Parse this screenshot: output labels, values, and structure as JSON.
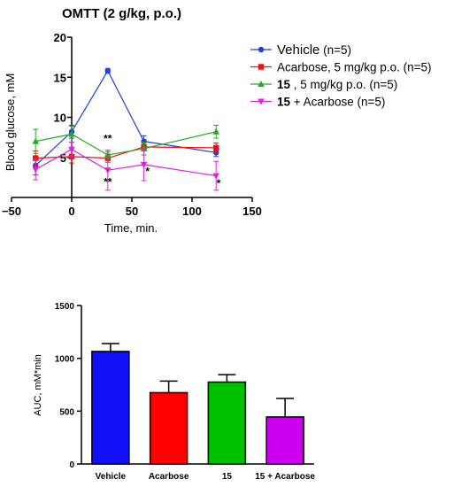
{
  "chart_data": [
    {
      "type": "line",
      "title": "OMTT (2 g/kg, p.o.)",
      "xlabel": "Time, min.",
      "ylabel": "Blood glucose, mM",
      "xlim": [
        -50,
        150
      ],
      "ylim": [
        0,
        20
      ],
      "xticks": [
        -50,
        0,
        50,
        100,
        150
      ],
      "yticks": [
        5,
        10,
        15,
        20
      ],
      "grid": false,
      "legend_position": "right",
      "legend": [
        {
          "main": "Vehicle",
          "rest": " (n=5)",
          "bold_main": false,
          "color": "#1f3fe0",
          "marker": "circle"
        },
        {
          "main": "Acarbose, 5 mg/kg p.o. (n=5)",
          "rest": "",
          "bold_main": false,
          "color": "#ee1111",
          "marker": "square"
        },
        {
          "main": "15",
          "rest": " , 5 mg/kg p.o. (n=5)",
          "bold_main": true,
          "color": "#22aa22",
          "marker": "triangle-up"
        },
        {
          "main": "15",
          "rest": " + Acarbose (n=5)",
          "bold_main": true,
          "color": "#dd22dd",
          "marker": "triangle-down"
        }
      ],
      "series": [
        {
          "color": "#1f3fe0",
          "marker": "circle",
          "x": [
            -30,
            0,
            30,
            60,
            120
          ],
          "y": [
            4.0,
            8.2,
            15.8,
            7.0,
            5.6
          ],
          "err": [
            1.2,
            0.8,
            0.3,
            0.7,
            0.5
          ]
        },
        {
          "color": "#ee1111",
          "marker": "square",
          "x": [
            -30,
            0,
            30,
            60,
            120
          ],
          "y": [
            4.9,
            5.1,
            4.9,
            6.3,
            6.2
          ],
          "err": [
            0.9,
            0.8,
            0.5,
            0.5,
            0.6
          ]
        },
        {
          "color": "#22aa22",
          "marker": "triangle-up",
          "x": [
            -30,
            0,
            30,
            60,
            120
          ],
          "y": [
            7.0,
            7.9,
            5.3,
            6.1,
            8.2
          ],
          "err": [
            1.5,
            1.0,
            0.4,
            0.8,
            0.8
          ]
        },
        {
          "color": "#dd22dd",
          "marker": "triangle-down",
          "x": [
            -30,
            0,
            30,
            60,
            120
          ],
          "y": [
            3.5,
            6.0,
            3.4,
            4.1,
            2.7
          ],
          "err": [
            1.3,
            0.9,
            2.5,
            2.0,
            1.8
          ]
        }
      ],
      "annotations": [
        {
          "text": "**",
          "x": 30,
          "y": 6.9
        },
        {
          "text": "**",
          "x": 30,
          "y": 1.5
        },
        {
          "text": "*",
          "x": 63,
          "y": 2.8
        },
        {
          "text": "*",
          "x": 122,
          "y": 1.3
        }
      ]
    },
    {
      "type": "bar",
      "title": "",
      "xlabel": "",
      "ylabel": "AUC, mM*min",
      "ylim": [
        0,
        1500
      ],
      "yticks": [
        0,
        500,
        1000,
        1500
      ],
      "grid": false,
      "categories": [
        "Vehicle",
        "Acarbose",
        "15",
        "15 + Acarbose"
      ],
      "values": [
        1065,
        675,
        775,
        445
      ],
      "errors": [
        75,
        110,
        70,
        175
      ],
      "colors": [
        "#1010f5",
        "#ff0000",
        "#00c000",
        "#cc00ee"
      ]
    }
  ]
}
